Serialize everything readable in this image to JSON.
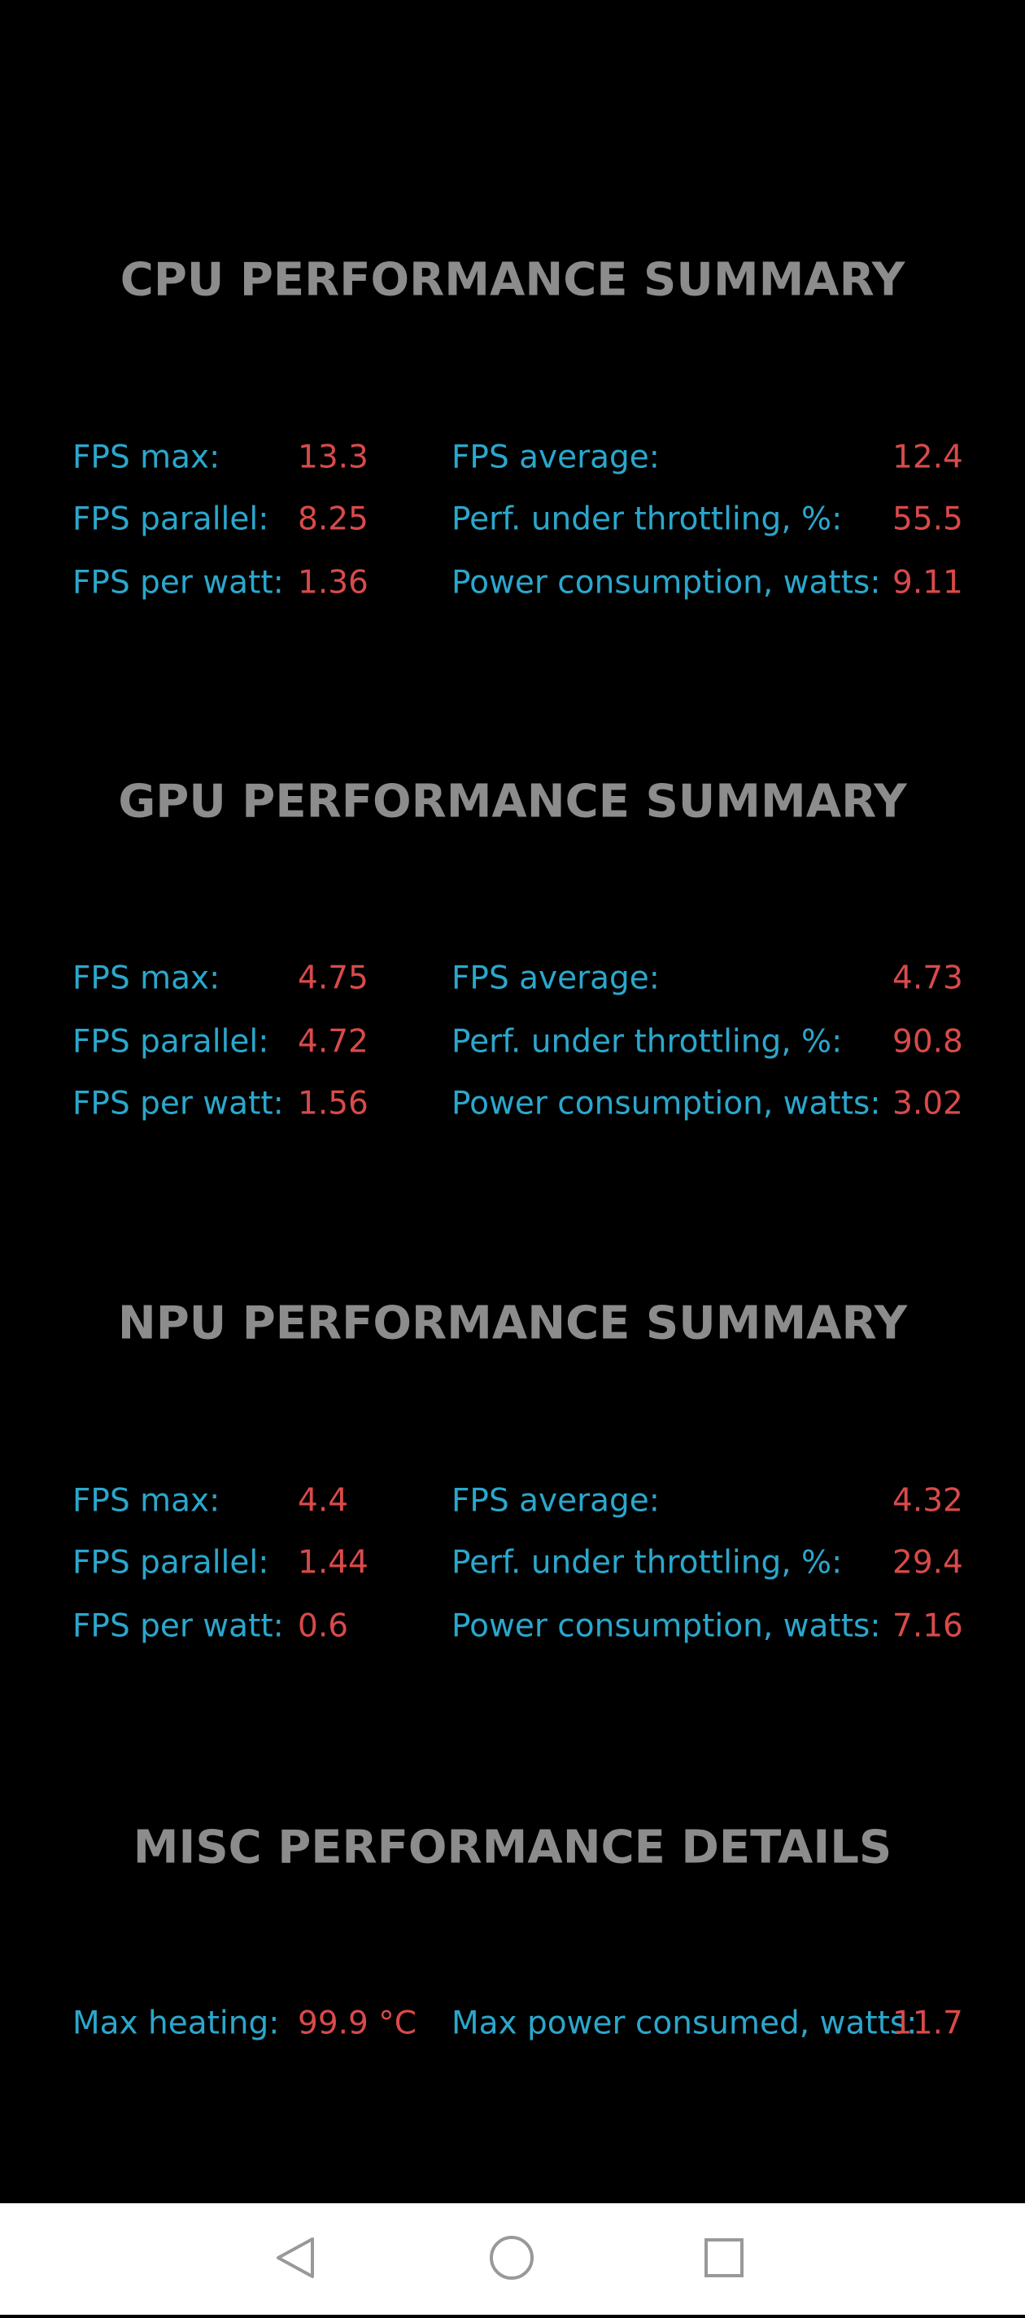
{
  "sections": [
    {
      "title": "CPU PERFORMANCE SUMMARY",
      "rows": [
        [
          [
            "FPS max:",
            "13.3"
          ],
          [
            "FPS average:",
            "12.4"
          ]
        ],
        [
          [
            "FPS parallel:",
            "8.25"
          ],
          [
            "Perf. under throttling, %:",
            "55.5"
          ]
        ],
        [
          [
            "FPS per watt:",
            "1.36"
          ],
          [
            "Power consumption, watts:",
            "9.11"
          ]
        ]
      ]
    },
    {
      "title": "GPU PERFORMANCE SUMMARY",
      "rows": [
        [
          [
            "FPS max:",
            "4.75"
          ],
          [
            "FPS average:",
            "4.73"
          ]
        ],
        [
          [
            "FPS parallel:",
            "4.72"
          ],
          [
            "Perf. under throttling, %:",
            "90.8"
          ]
        ],
        [
          [
            "FPS per watt:",
            "1.56"
          ],
          [
            "Power consumption, watts:",
            "3.02"
          ]
        ]
      ]
    },
    {
      "title": "NPU PERFORMANCE SUMMARY",
      "rows": [
        [
          [
            "FPS max:",
            "4.4"
          ],
          [
            "FPS average:",
            "4.32"
          ]
        ],
        [
          [
            "FPS parallel:",
            "1.44"
          ],
          [
            "Perf. under throttling, %:",
            "29.4"
          ]
        ],
        [
          [
            "FPS per watt:",
            "0.6"
          ],
          [
            "Power consumption, watts:",
            "7.16"
          ]
        ]
      ]
    },
    {
      "title": "MISC PERFORMANCE DETAILS",
      "rows": [
        [
          [
            "Max heating:",
            "99.9 °C"
          ],
          [
            "Max power consumed, watts:",
            "11.7"
          ]
        ]
      ]
    }
  ]
}
